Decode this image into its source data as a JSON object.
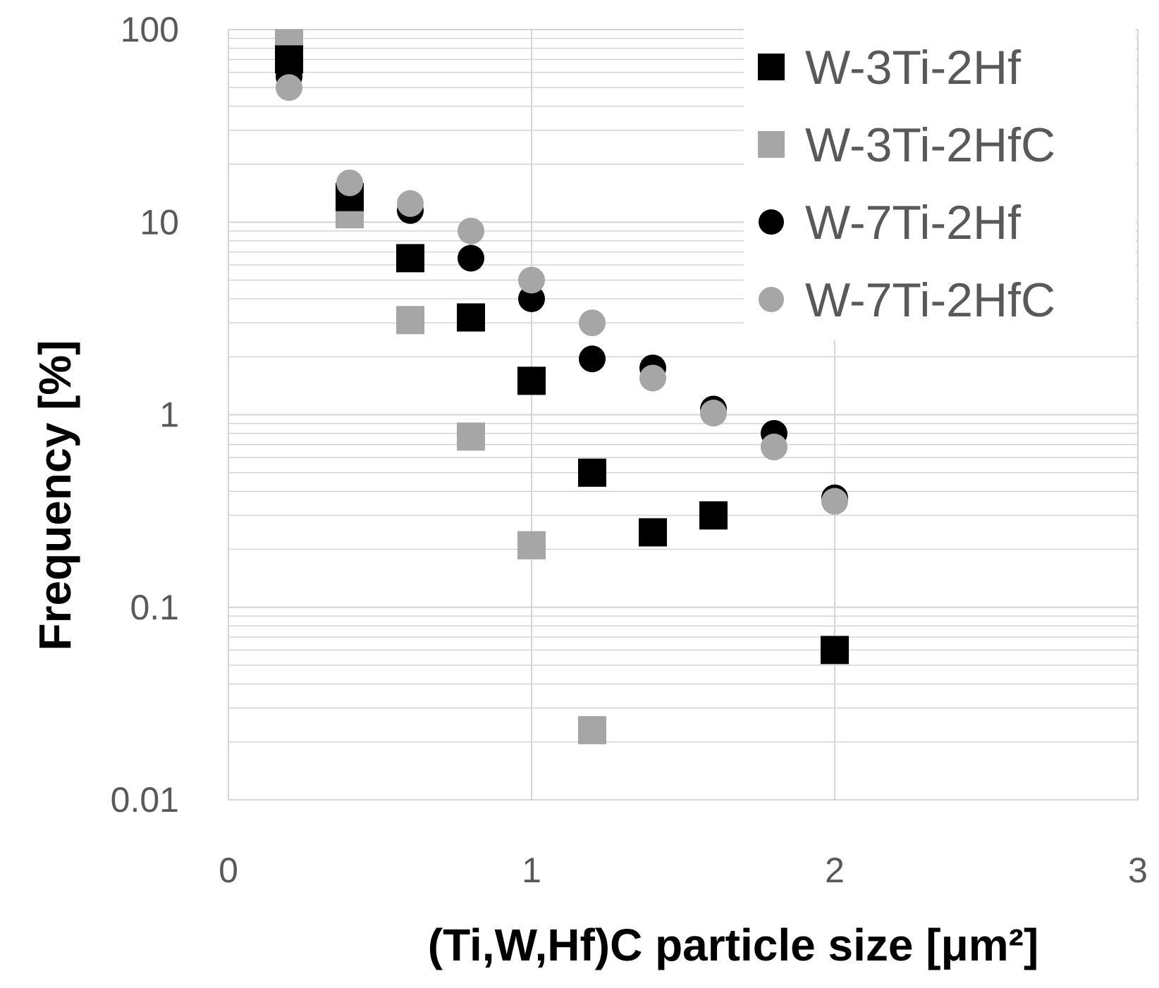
{
  "chart_data": {
    "type": "scatter",
    "xlabel": "(Ti,W,Hf)C particle size [μm²]",
    "ylabel": "Frequency [%]",
    "xlim": [
      0,
      3
    ],
    "ylim": [
      0.01,
      100
    ],
    "yscale": "log",
    "x_ticks": [
      "0",
      "1",
      "2",
      "3"
    ],
    "y_ticks": [
      "0.01",
      "0.1",
      "1",
      "10",
      "100"
    ],
    "grid": true,
    "legend_position": "top-right",
    "series": [
      {
        "name": "W-3Ti-2Hf",
        "marker": "square",
        "color": "#000000",
        "points": [
          [
            0.2,
            70
          ],
          [
            0.4,
            13.5
          ],
          [
            0.6,
            6.5
          ],
          [
            0.8,
            3.2
          ],
          [
            1.0,
            1.5
          ],
          [
            1.2,
            0.5
          ],
          [
            1.4,
            0.245
          ],
          [
            1.6,
            0.3
          ],
          [
            2.0,
            0.06
          ]
        ]
      },
      {
        "name": "W-3Ti-2HfC",
        "marker": "square",
        "color": "#a6a6a6",
        "points": [
          [
            0.2,
            85
          ],
          [
            0.4,
            11
          ],
          [
            0.6,
            3.1
          ],
          [
            0.8,
            0.77
          ],
          [
            1.0,
            0.21
          ],
          [
            1.2,
            0.023
          ]
        ]
      },
      {
        "name": "W-7Ti-2Hf",
        "marker": "circle",
        "color": "#000000",
        "points": [
          [
            0.2,
            57
          ],
          [
            0.4,
            14.5
          ],
          [
            0.6,
            11.5
          ],
          [
            0.8,
            6.5
          ],
          [
            1.0,
            4.0
          ],
          [
            1.2,
            1.95
          ],
          [
            1.4,
            1.75
          ],
          [
            1.6,
            1.07
          ],
          [
            1.8,
            0.8
          ],
          [
            2.0,
            0.37
          ]
        ]
      },
      {
        "name": "W-7Ti-2HfC",
        "marker": "circle",
        "color": "#a6a6a6",
        "points": [
          [
            0.2,
            50
          ],
          [
            0.4,
            16
          ],
          [
            0.6,
            12.5
          ],
          [
            0.8,
            9.0
          ],
          [
            1.0,
            5.0
          ],
          [
            1.2,
            3.0
          ],
          [
            1.4,
            1.55
          ],
          [
            1.6,
            1.02
          ],
          [
            1.8,
            0.68
          ],
          [
            2.0,
            0.355
          ]
        ]
      }
    ]
  }
}
